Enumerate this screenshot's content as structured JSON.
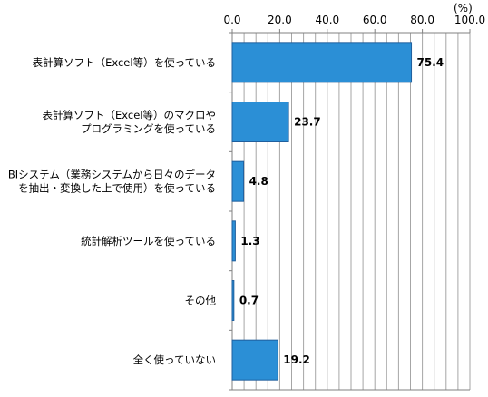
{
  "chart_data": {
    "type": "bar",
    "orientation": "horizontal",
    "unit": "(%)",
    "xlim": [
      0,
      100
    ],
    "xticks": [
      0,
      20,
      40,
      60,
      80,
      100
    ],
    "xtick_labels": [
      "0.0",
      "20.0",
      "40.0",
      "60.0",
      "80.0",
      "100.0"
    ],
    "tick_axis_position": "top",
    "grid": true,
    "categories": [
      [
        "表計算ソフト（Excel等）を使っている"
      ],
      [
        "表計算ソフト（Excel等）のマクロや",
        "プログラミングを使っている"
      ],
      [
        "BIシステム（業務システムから日々のデータ",
        "を抽出・変換した上で使用）を使っている"
      ],
      [
        "統計解析ツールを使っている"
      ],
      [
        "その他"
      ],
      [
        "全く使っていない"
      ]
    ],
    "values": [
      75.4,
      23.7,
      4.8,
      1.3,
      0.7,
      19.2
    ],
    "value_labels": [
      "75.4",
      "23.7",
      "4.8",
      "1.3",
      "0.7",
      "19.2"
    ],
    "bar_color": "#2b8fd6",
    "bar_edge_color": "#1f5f9e"
  }
}
